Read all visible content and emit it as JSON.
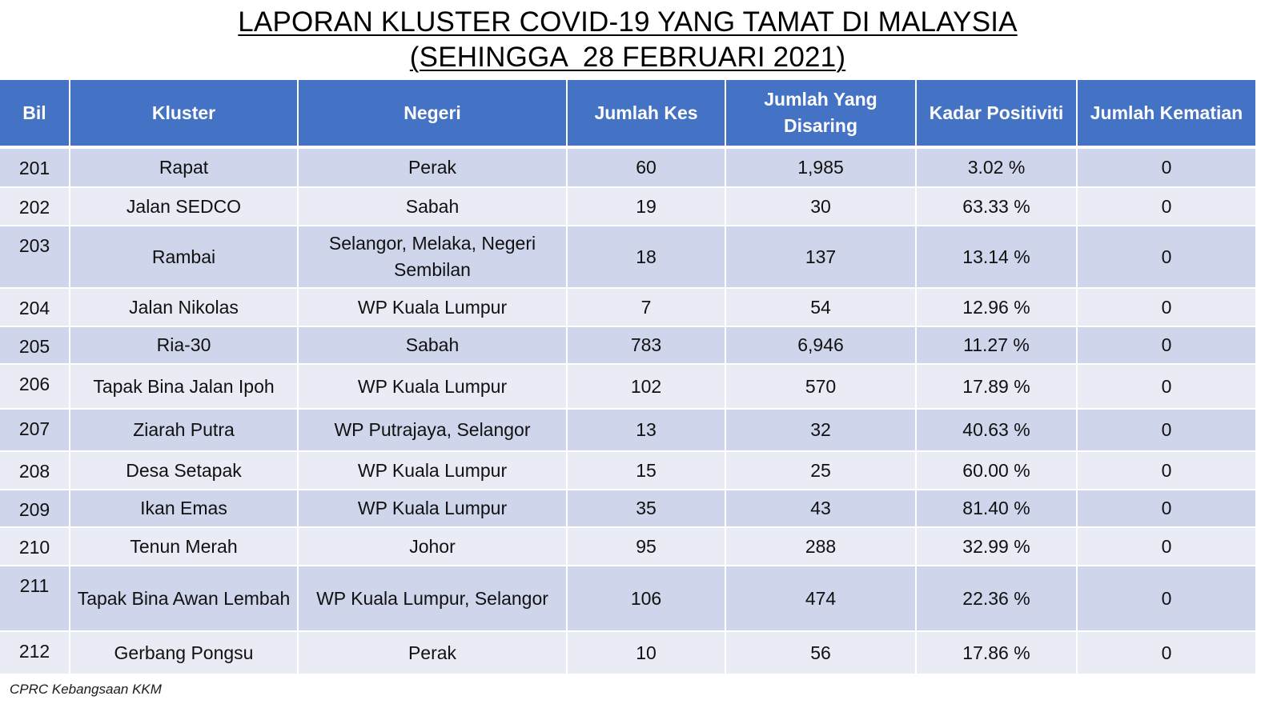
{
  "title": {
    "line1": "LAPORAN KLUSTER COVID-19 YANG TAMAT DI MALAYSIA",
    "line2": "(SEHINGGA  28 FEBRUARI 2021)"
  },
  "colors": {
    "header_bg": "#4472c4",
    "row_dark": "#cfd5ea",
    "row_light": "#e9ebf5"
  },
  "table": {
    "headers": [
      "Bil",
      "Kluster",
      "Negeri",
      "Jumlah Kes",
      "Jumlah Yang Disaring",
      "Kadar Positiviti",
      "Jumlah Kematian"
    ],
    "rows": [
      {
        "bil": "201",
        "kluster": "Rapat",
        "negeri": "Perak",
        "kes": "60",
        "disaring": "1,985",
        "positiviti": "3.02 %",
        "kematian": "0"
      },
      {
        "bil": "202",
        "kluster": "Jalan SEDCO",
        "negeri": "Sabah",
        "kes": "19",
        "disaring": "30",
        "positiviti": "63.33 %",
        "kematian": "0"
      },
      {
        "bil": "203",
        "kluster": "Rambai",
        "negeri": "Selangor, Melaka, Negeri Sembilan",
        "kes": "18",
        "disaring": "137",
        "positiviti": "13.14 %",
        "kematian": "0"
      },
      {
        "bil": "204",
        "kluster": "Jalan Nikolas",
        "negeri": "WP Kuala Lumpur",
        "kes": "7",
        "disaring": "54",
        "positiviti": "12.96 %",
        "kematian": "0"
      },
      {
        "bil": "205",
        "kluster": "Ria-30",
        "negeri": "Sabah",
        "kes": "783",
        "disaring": "6,946",
        "positiviti": "11.27 %",
        "kematian": "0"
      },
      {
        "bil": "206",
        "kluster": "Tapak Bina Jalan Ipoh",
        "negeri": "WP Kuala Lumpur",
        "kes": "102",
        "disaring": "570",
        "positiviti": "17.89 %",
        "kematian": "0"
      },
      {
        "bil": "207",
        "kluster": "Ziarah Putra",
        "negeri": "WP Putrajaya, Selangor",
        "kes": "13",
        "disaring": "32",
        "positiviti": "40.63 %",
        "kematian": "0"
      },
      {
        "bil": "208",
        "kluster": "Desa Setapak",
        "negeri": "WP Kuala Lumpur",
        "kes": "15",
        "disaring": "25",
        "positiviti": "60.00 %",
        "kematian": "0"
      },
      {
        "bil": "209",
        "kluster": "Ikan Emas",
        "negeri": "WP Kuala Lumpur",
        "kes": "35",
        "disaring": "43",
        "positiviti": "81.40 %",
        "kematian": "0"
      },
      {
        "bil": "210",
        "kluster": "Tenun Merah",
        "negeri": "Johor",
        "kes": "95",
        "disaring": "288",
        "positiviti": "32.99 %",
        "kematian": "0"
      },
      {
        "bil": "211",
        "kluster": "Tapak Bina Awan Lembah",
        "negeri": "WP Kuala Lumpur, Selangor",
        "kes": "106",
        "disaring": "474",
        "positiviti": "22.36 %",
        "kematian": "0"
      },
      {
        "bil": "212",
        "kluster": "Gerbang Pongsu",
        "negeri": "Perak",
        "kes": "10",
        "disaring": "56",
        "positiviti": "17.86 %",
        "kematian": "0"
      }
    ]
  },
  "footer": {
    "source": "CPRC Kebangsaan KKM"
  }
}
